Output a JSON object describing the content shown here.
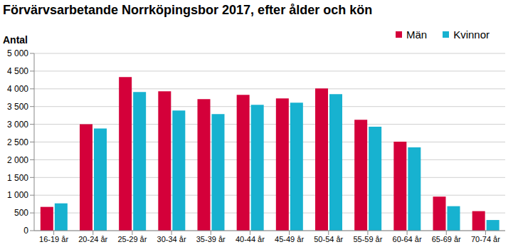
{
  "chart_data": {
    "type": "bar",
    "title": "Förvärvsarbetande Norrköpingsbor 2017, efter ålder och kön",
    "y_label": "Antal",
    "categories": [
      "16-19 år",
      "20-24 år",
      "25-29 år",
      "30-34 år",
      "35-39 år",
      "40-44 år",
      "45-49 år",
      "50-54 år",
      "55-59 år",
      "60-64 år",
      "65-69 år",
      "70-74 år"
    ],
    "series": [
      {
        "name": "Män",
        "color": "#d4003a",
        "values": [
          670,
          3000,
          4330,
          3930,
          3710,
          3830,
          3730,
          4010,
          3130,
          2510,
          960,
          550
        ]
      },
      {
        "name": "Kvinnor",
        "color": "#17b2d0",
        "values": [
          770,
          2880,
          3910,
          3390,
          3290,
          3550,
          3610,
          3850,
          2930,
          2350,
          690,
          300
        ]
      }
    ],
    "ylim": [
      0,
      5000
    ],
    "yticks": [
      0,
      500,
      {
        "value": 1000,
        "label": "1 000"
      },
      {
        "value": 1500,
        "label": "1 500"
      },
      {
        "value": 2000,
        "label": "2 000"
      },
      {
        "value": 2500,
        "label": "2 500"
      },
      {
        "value": 3000,
        "label": "3 000"
      },
      {
        "value": 3500,
        "label": "3 500"
      },
      {
        "value": 4000,
        "label": "4 000"
      },
      {
        "value": 4500,
        "label": "4 500"
      },
      {
        "value": 5000,
        "label": "5 000"
      }
    ],
    "grid": true,
    "legend": "top-right"
  }
}
